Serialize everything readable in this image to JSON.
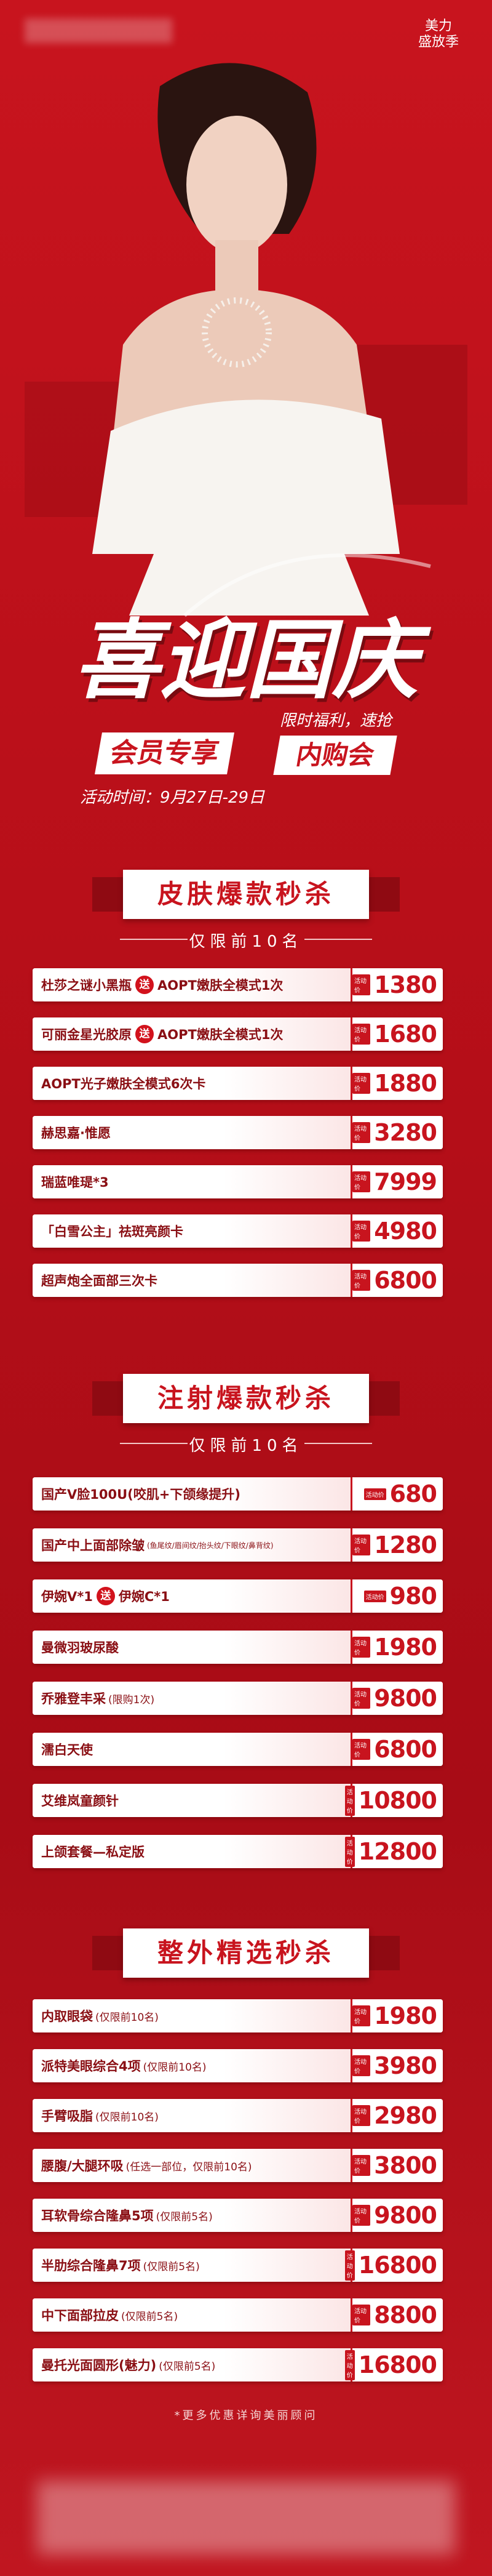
{
  "header": {
    "brand_lines": [
      "美力",
      "盛放季"
    ],
    "title": "喜迎国庆",
    "badge_left": "会员专享",
    "slogan": "限时福利，速抢",
    "badge_right": "内购会",
    "time": "活动时间：9月27日-29日"
  },
  "price_tag": "活动价",
  "sections": [
    {
      "title": "皮肤爆款秒杀",
      "subtitle": "仅限前10名",
      "items": [
        {
          "name": "杜莎之谜小黑瓶",
          "gift": "送",
          "bonus": "AOPT嫩肤全模式1次",
          "price": 1380
        },
        {
          "name": "可丽金星光胶原",
          "gift": "送",
          "bonus": "AOPT嫩肤全模式1次",
          "price": 1680
        },
        {
          "name": "AOPT光子嫩肤全模式6次卡",
          "price": 1880
        },
        {
          "name": "赫思嘉·惟愿",
          "price": 3280
        },
        {
          "name": "瑞蓝唯瑅*3",
          "price": 7999
        },
        {
          "name": "「白雪公主」祛斑亮颜卡",
          "price": 4980
        },
        {
          "name": "超声炮全面部三次卡",
          "price": 6800
        }
      ]
    },
    {
      "title": "注射爆款秒杀",
      "subtitle": "仅限前10名",
      "items": [
        {
          "name": "国产V脸100U(咬肌+下颌缘提升)",
          "price": 680
        },
        {
          "name": "国产中上面部除皱",
          "note": "(鱼尾纹/眉间纹/抬头纹/下眼纹/鼻背纹)",
          "price": 1280
        },
        {
          "name": "伊婉V*1",
          "gift": "送",
          "bonus": "伊婉C*1",
          "price": 980
        },
        {
          "name": "曼微羽玻尿酸",
          "price": 1980
        },
        {
          "name": "乔雅登丰采",
          "note": "(限购1次)",
          "price": 9800
        },
        {
          "name": "濡白天使",
          "price": 6800
        },
        {
          "name": "艾维岚童颜针",
          "price": 10800
        },
        {
          "name": "上颌套餐—私定版",
          "price": 12800
        }
      ]
    },
    {
      "title": "整外精选秒杀",
      "items": [
        {
          "name": "内取眼袋",
          "note": "(仅限前10名)",
          "price": 1980
        },
        {
          "name": "派特美眼综合4项",
          "note": "(仅限前10名)",
          "price": 3980
        },
        {
          "name": "手臂吸脂",
          "note": "(仅限前10名)",
          "price": 2980
        },
        {
          "name": "腰腹/大腿环吸",
          "note": "(任选一部位，仅限前10名)",
          "price": 3800
        },
        {
          "name": "耳软骨综合隆鼻5项",
          "note": "(仅限前5名)",
          "price": 9800
        },
        {
          "name": "半肋综合隆鼻7项",
          "note": "(仅限前5名)",
          "price": 16800
        },
        {
          "name": "中下面部拉皮",
          "note": "(仅限前5名)",
          "price": 8800
        },
        {
          "name": "曼托光面圆形(魅力)",
          "note": "(仅限前5名)",
          "price": 16800
        }
      ]
    }
  ],
  "footer": "*更多优惠详询美丽顾问"
}
